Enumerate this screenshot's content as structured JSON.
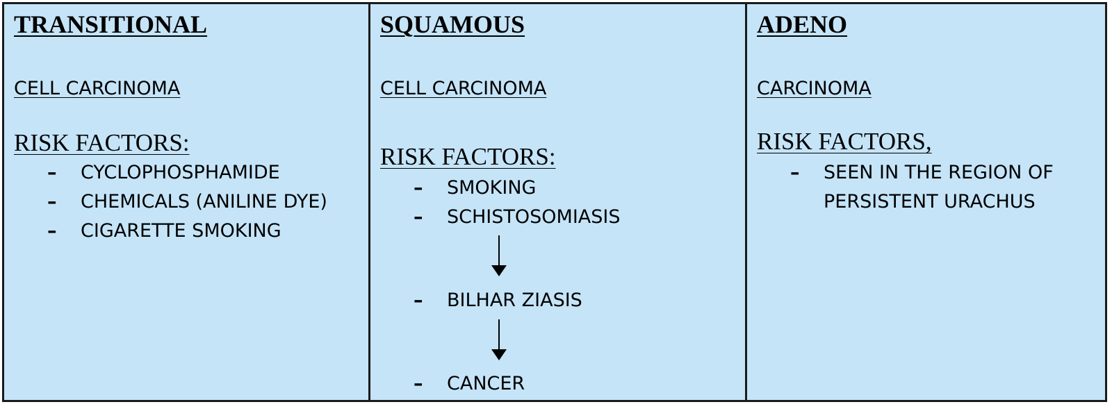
{
  "columns": [
    {
      "title": "TRANSITIONAL",
      "subtitle": "CELL CARCINOMA",
      "risk_heading": "RISK FACTORS:",
      "items": [
        "CYCLOPHOSPHAMIDE",
        "CHEMICALS (ANILINE DYE)",
        "CIGARETTE SMOKING"
      ]
    },
    {
      "title": "SQUAMOUS",
      "subtitle": "CELL CARCINOMA",
      "risk_heading": "RISK FACTORS:",
      "items": [
        "SMOKING",
        "SCHISTOSOMIASIS",
        "BILHAR ZIASIS",
        "CANCER"
      ]
    },
    {
      "title": "ADENO",
      "subtitle": "CARCINOMA",
      "risk_heading": "RISK FACTORS,",
      "items": [
        "SEEN IN THE REGION OF PERSISTENT URACHUS"
      ]
    }
  ],
  "dash_symbol": "–",
  "colors": {
    "cell_background": "#c5e4f8",
    "border": "#1a1a1a",
    "text": "#000000"
  }
}
